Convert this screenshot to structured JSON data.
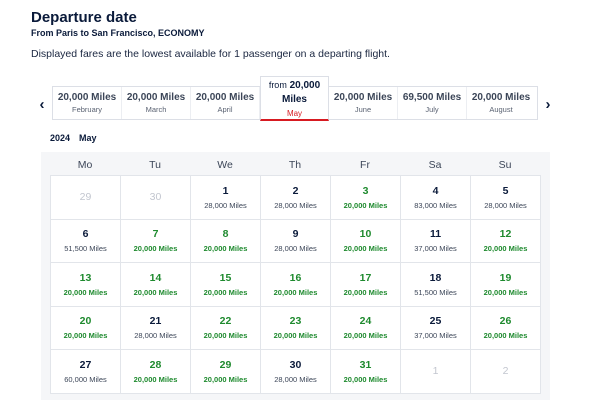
{
  "header": {
    "title": "Departure date",
    "subtitle": "From Paris to San Francisco, ECONOMY",
    "info": "Displayed fares are the lowest available for 1 passenger on a departing flight."
  },
  "month_selector": {
    "prev_icon": "chevron-left-icon",
    "next_icon": "chevron-right-icon",
    "months": [
      {
        "miles": "20,000 Miles",
        "name": "February"
      },
      {
        "miles": "20,000 Miles",
        "name": "March"
      },
      {
        "miles": "20,000 Miles",
        "name": "April"
      },
      {
        "from": "from",
        "miles_value": "20,000",
        "miles_unit": "Miles",
        "name": "May",
        "active": true
      },
      {
        "miles": "20,000 Miles",
        "name": "June"
      },
      {
        "miles": "69,500 Miles",
        "name": "July"
      },
      {
        "miles": "20,000 Miles",
        "name": "August"
      }
    ]
  },
  "calendar": {
    "year": "2024",
    "month": "May",
    "weekdays": [
      "Mo",
      "Tu",
      "We",
      "Th",
      "Fr",
      "Sa",
      "Su"
    ],
    "accent_green": "#1e8a2e",
    "cells": [
      {
        "day": "29",
        "fare": "",
        "muted": true
      },
      {
        "day": "30",
        "fare": "",
        "muted": true
      },
      {
        "day": "1",
        "fare": "28,000 Miles"
      },
      {
        "day": "2",
        "fare": "28,000 Miles"
      },
      {
        "day": "3",
        "fare": "20,000 Miles",
        "cheap": true
      },
      {
        "day": "4",
        "fare": "83,000 Miles"
      },
      {
        "day": "5",
        "fare": "28,000 Miles"
      },
      {
        "day": "6",
        "fare": "51,500 Miles"
      },
      {
        "day": "7",
        "fare": "20,000 Miles",
        "cheap": true
      },
      {
        "day": "8",
        "fare": "20,000 Miles",
        "cheap": true
      },
      {
        "day": "9",
        "fare": "28,000 Miles"
      },
      {
        "day": "10",
        "fare": "20,000 Miles",
        "cheap": true
      },
      {
        "day": "11",
        "fare": "37,000 Miles"
      },
      {
        "day": "12",
        "fare": "20,000 Miles",
        "cheap": true
      },
      {
        "day": "13",
        "fare": "20,000 Miles",
        "cheap": true
      },
      {
        "day": "14",
        "fare": "20,000 Miles",
        "cheap": true
      },
      {
        "day": "15",
        "fare": "20,000 Miles",
        "cheap": true
      },
      {
        "day": "16",
        "fare": "20,000 Miles",
        "cheap": true
      },
      {
        "day": "17",
        "fare": "20,000 Miles",
        "cheap": true
      },
      {
        "day": "18",
        "fare": "51,500 Miles"
      },
      {
        "day": "19",
        "fare": "20,000 Miles",
        "cheap": true
      },
      {
        "day": "20",
        "fare": "20,000 Miles",
        "cheap": true
      },
      {
        "day": "21",
        "fare": "28,000 Miles"
      },
      {
        "day": "22",
        "fare": "20,000 Miles",
        "cheap": true
      },
      {
        "day": "23",
        "fare": "20,000 Miles",
        "cheap": true
      },
      {
        "day": "24",
        "fare": "20,000 Miles",
        "cheap": true
      },
      {
        "day": "25",
        "fare": "37,000 Miles"
      },
      {
        "day": "26",
        "fare": "20,000 Miles",
        "cheap": true
      },
      {
        "day": "27",
        "fare": "60,000 Miles"
      },
      {
        "day": "28",
        "fare": "20,000 Miles",
        "cheap": true
      },
      {
        "day": "29",
        "fare": "20,000 Miles",
        "cheap": true
      },
      {
        "day": "30",
        "fare": "28,000 Miles"
      },
      {
        "day": "31",
        "fare": "20,000 Miles",
        "cheap": true
      },
      {
        "day": "1",
        "fare": "",
        "muted": true
      },
      {
        "day": "2",
        "fare": "",
        "muted": true
      }
    ]
  }
}
